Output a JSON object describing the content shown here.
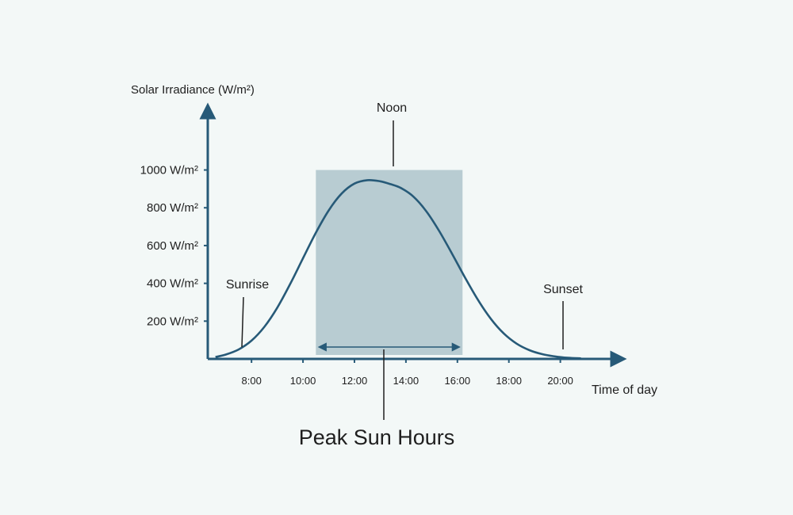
{
  "chart_data": {
    "type": "area",
    "title": "",
    "ylabel": "Solar Irradiance (W/m²)",
    "xlabel": "Time of day",
    "x_ticks": [
      {
        "value": 8,
        "label": "8:00"
      },
      {
        "value": 10,
        "label": "10:00"
      },
      {
        "value": 12,
        "label": "12:00"
      },
      {
        "value": 14,
        "label": "14:00"
      },
      {
        "value": 16,
        "label": "16:00"
      },
      {
        "value": 18,
        "label": "18:00"
      },
      {
        "value": 20,
        "label": "20:00"
      }
    ],
    "y_ticks": [
      {
        "value": 200,
        "label": "200 W/m²"
      },
      {
        "value": 400,
        "label": "400 W/m²"
      },
      {
        "value": 600,
        "label": "600 W/m²"
      },
      {
        "value": 800,
        "label": "800 W/m²"
      },
      {
        "value": 1000,
        "label": "1000 W/m²"
      }
    ],
    "xlim": [
      6.3,
      22.2
    ],
    "ylim": [
      0,
      1300
    ],
    "series": [
      {
        "x": [
          6.6,
          7.0,
          7.5,
          8.0,
          8.5,
          9.0,
          9.5,
          10.0,
          10.5,
          11.0,
          11.5,
          12.0,
          12.5,
          13.0,
          13.4,
          13.8,
          14.3,
          14.8,
          15.3,
          15.8,
          16.3,
          16.8,
          17.3,
          17.8,
          18.3,
          18.8,
          19.3,
          19.8,
          20.3,
          20.8
        ],
        "y": [
          10,
          23,
          50,
          97,
          170,
          271,
          396,
          533,
          668,
          786,
          875,
          928,
          946,
          940,
          925,
          905,
          858,
          780,
          675,
          555,
          430,
          312,
          212,
          135,
          81,
          46,
          25,
          13,
          6,
          3
        ]
      }
    ],
    "peak_band": {
      "x_start": 10.5,
      "x_end": 16.2,
      "y_top": 1000,
      "color": "#b8ccd2"
    },
    "line_color": "#275a78",
    "annotations": [
      {
        "text": "Noon",
        "x": 13.4,
        "y": 946
      },
      {
        "text": "Sunrise",
        "x": 7.7,
        "y": 80
      },
      {
        "text": "Sunset",
        "x": 20.1,
        "y": 40
      }
    ],
    "callout": "Peak Sun Hours"
  }
}
